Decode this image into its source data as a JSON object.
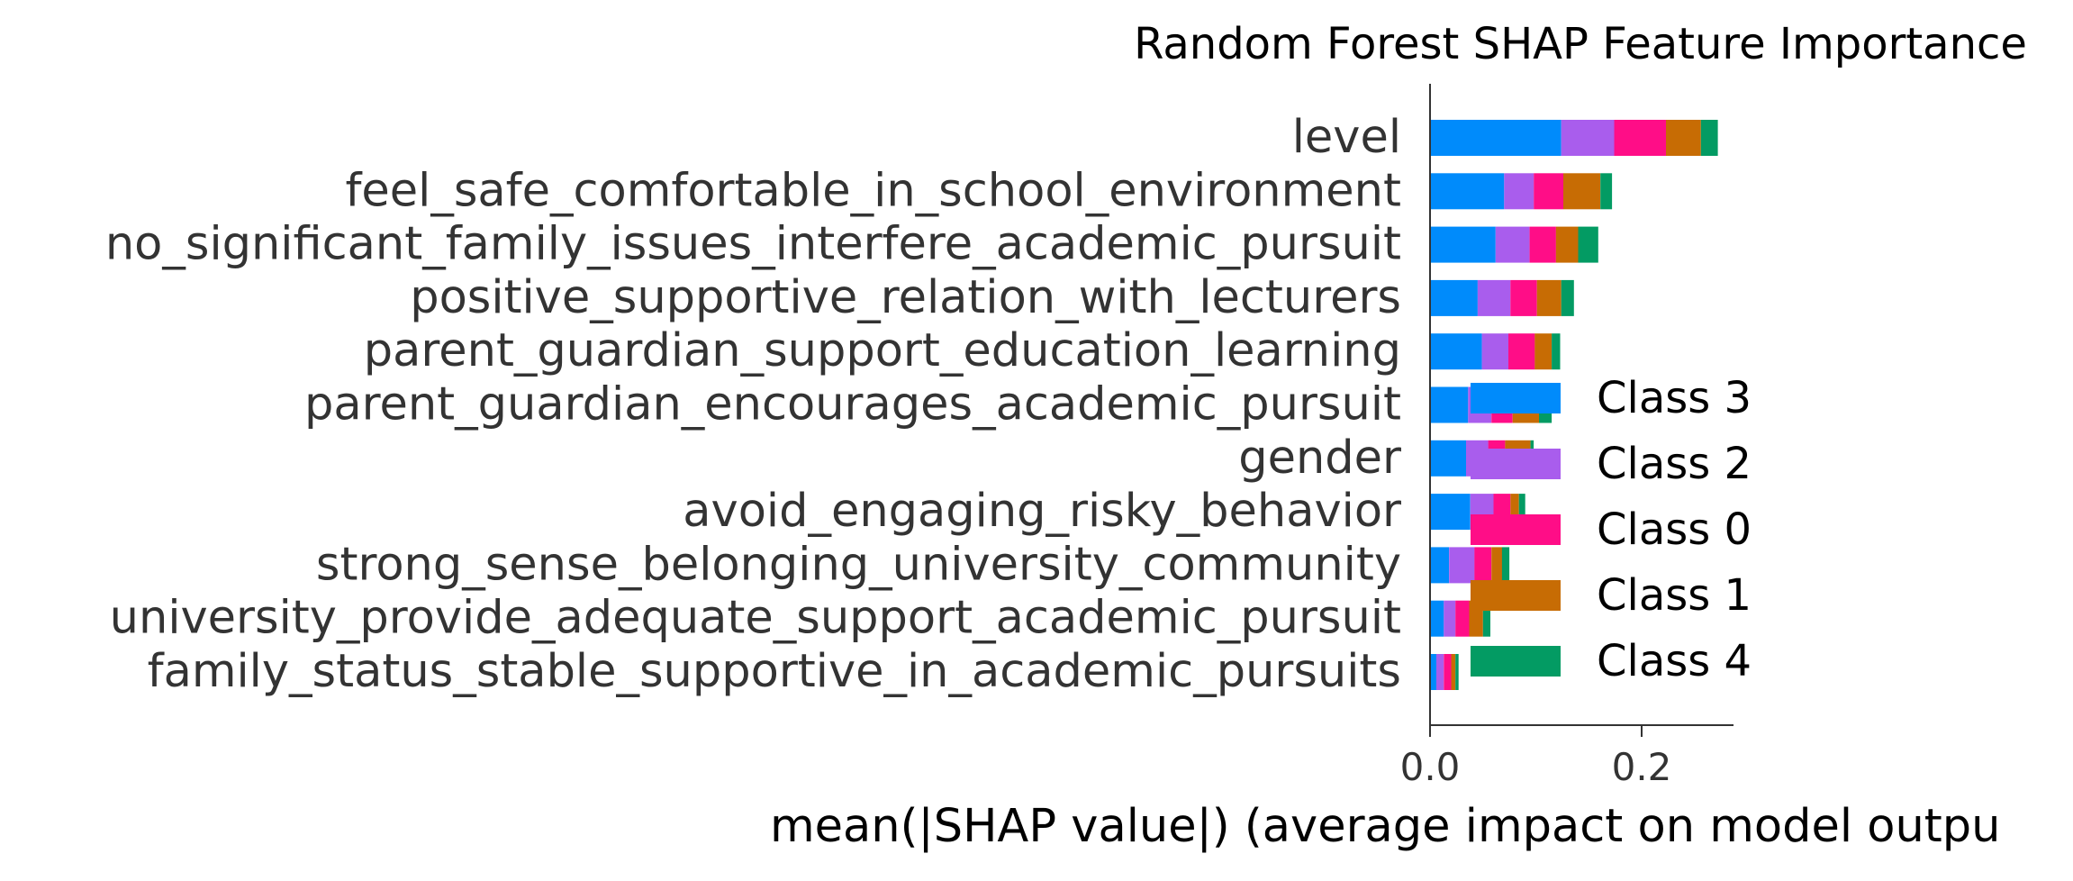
{
  "chart_data": {
    "type": "bar",
    "stacked": true,
    "orientation": "horizontal",
    "title": "Random Forest SHAP Feature Importance",
    "xlabel": "mean(|SHAP value|) (average impact on model outpu",
    "ylabel": "",
    "xlim": [
      0,
      0.285
    ],
    "xticks": [
      {
        "value": 0.0,
        "label": "0.0"
      },
      {
        "value": 0.2,
        "label": "0.2"
      }
    ],
    "grid": false,
    "legend_position": "lower-right",
    "categories": [
      "level",
      "feel_safe_comfortable_in_school_environment",
      "no_significant_family_issues_interfere_academic_pursuit",
      "positive_supportive_relation_with_lecturers",
      "parent_guardian_support_education_learning",
      "parent_guardian_encourages_academic_pursuit",
      "gender",
      "avoid_engaging_risky_behavior",
      "strong_sense_belonging_university_community",
      "university_provide_adequate_support_academic_pursuit",
      "family_status_stable_supportive_in_academic_pursuits"
    ],
    "series": [
      {
        "name": "Class 3",
        "color": "#008bfb",
        "values": [
          0.124,
          0.07,
          0.062,
          0.045,
          0.049,
          0.036,
          0.034,
          0.038,
          0.018,
          0.013,
          0.006
        ]
      },
      {
        "name": "Class 2",
        "color": "#a95ded",
        "values": [
          0.05,
          0.028,
          0.032,
          0.031,
          0.025,
          0.022,
          0.021,
          0.022,
          0.024,
          0.011,
          0.007
        ]
      },
      {
        "name": "Class 0",
        "color": "#ff0d87",
        "values": [
          0.049,
          0.028,
          0.025,
          0.025,
          0.025,
          0.02,
          0.016,
          0.016,
          0.016,
          0.013,
          0.007
        ]
      },
      {
        "name": "Class 1",
        "color": "#c76c04",
        "values": [
          0.033,
          0.035,
          0.021,
          0.023,
          0.016,
          0.025,
          0.024,
          0.008,
          0.01,
          0.013,
          0.004
        ]
      },
      {
        "name": "Class 4",
        "color": "#039b63",
        "values": [
          0.016,
          0.011,
          0.019,
          0.012,
          0.008,
          0.012,
          0.003,
          0.006,
          0.007,
          0.007,
          0.003
        ]
      }
    ]
  }
}
